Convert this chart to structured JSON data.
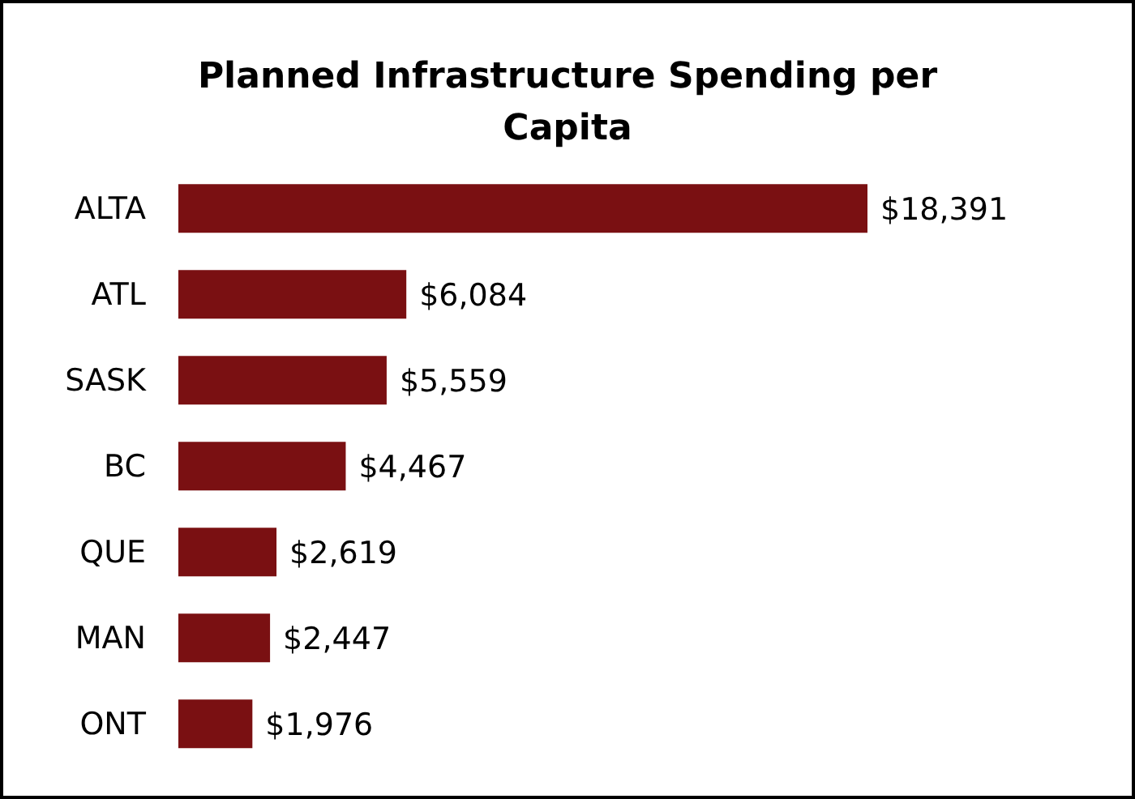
{
  "chart_data": {
    "type": "bar",
    "orientation": "horizontal",
    "title": "Planned Infrastructure Spending per Capita",
    "categories": [
      "ALTA",
      "ATL",
      "SASK",
      "BC",
      "QUE",
      "MAN",
      "ONT"
    ],
    "values": [
      18391,
      6084,
      5559,
      4467,
      2619,
      2447,
      1976
    ],
    "value_labels": [
      "$18,391",
      "$6,084",
      "$5,559",
      "$4,467",
      "$2,619",
      "$2,447",
      "$1,976"
    ],
    "color": "#7a1012",
    "grid": false,
    "legend": false
  }
}
